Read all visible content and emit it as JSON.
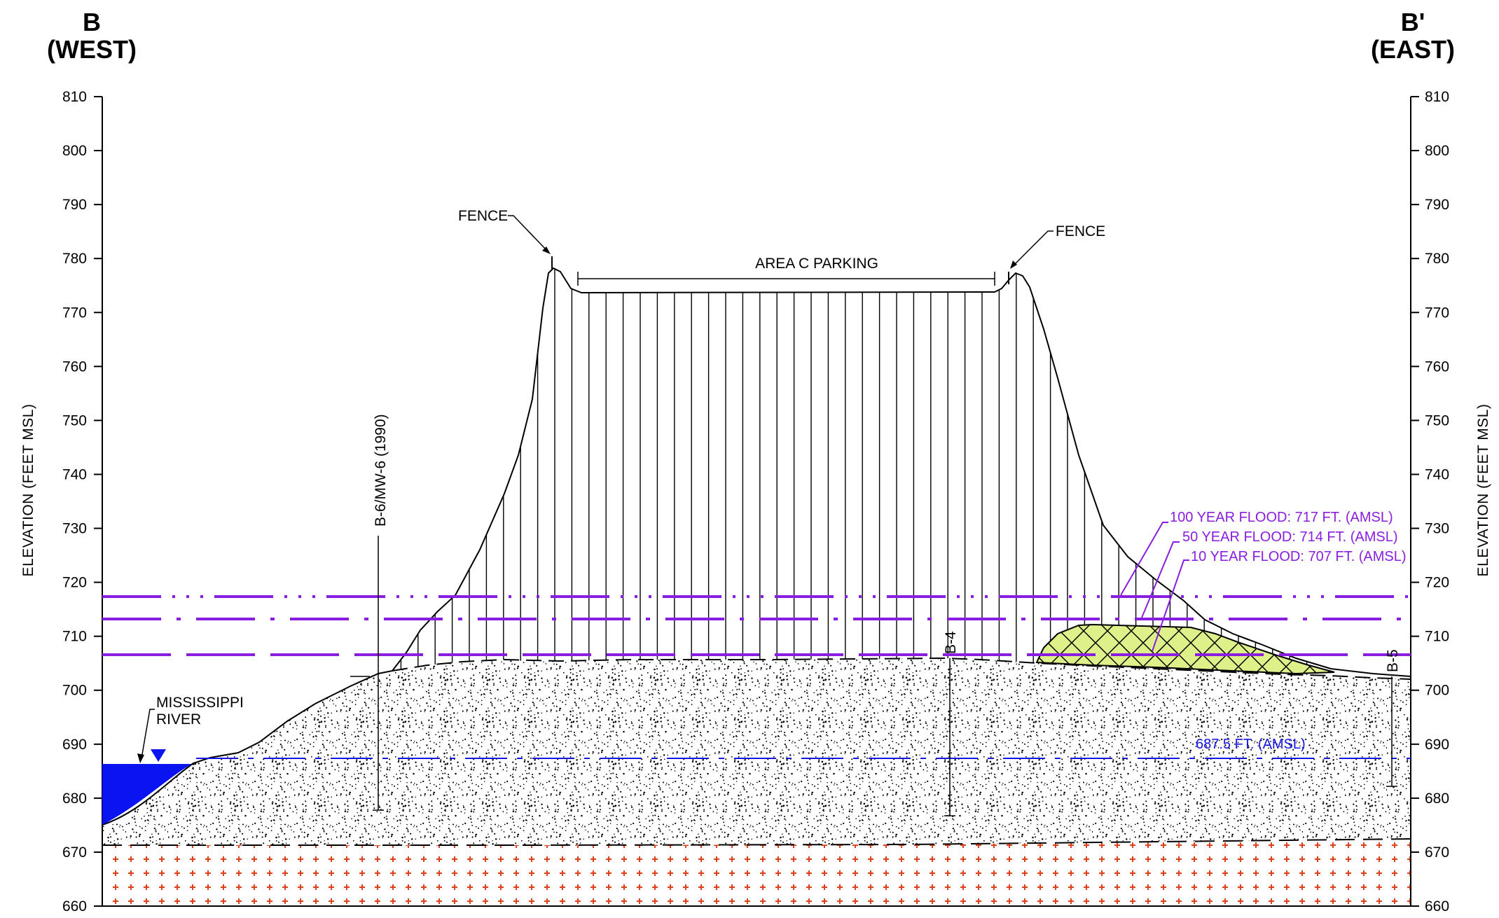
{
  "ends": {
    "west": {
      "letter": "B",
      "direction": "(WEST)"
    },
    "east": {
      "letter": "B'",
      "direction": "(EAST)"
    }
  },
  "axes": {
    "left_label": "ELEVATION (FEET MSL)",
    "right_label": "ELEVATION (FEET MSL)",
    "ticks": [
      "810",
      "800",
      "790",
      "780",
      "770",
      "760",
      "750",
      "740",
      "730",
      "720",
      "710",
      "700",
      "690",
      "680",
      "670",
      "660"
    ]
  },
  "labels": {
    "fence_west": "FENCE",
    "fence_east": "FENCE",
    "area_c": "AREA C PARKING",
    "river_line1": "MISSISSIPPI",
    "river_line2": "RIVER"
  },
  "borings": [
    {
      "name": "B-6/MW-6 (1990)",
      "top_ft": 706,
      "bottom_ft": 678
    },
    {
      "name": "B-4",
      "top_ft": 706,
      "bottom_ft": 677
    },
    {
      "name": "B-5",
      "top_ft": 702.5,
      "bottom_ft": 682
    }
  ],
  "flood_levels": [
    {
      "label": "100 YEAR FLOOD: 717 FT. (AMSL)",
      "elevation_ft": 717
    },
    {
      "label": "50 YEAR FLOOD: 714 FT. (AMSL)",
      "elevation_ft": 714
    },
    {
      "label": "10 YEAR FLOOD: 707 FT. (AMSL)",
      "elevation_ft": 707
    }
  ],
  "water_table": {
    "label": "687.5 FT. (AMSL)",
    "elevation_ft": 687.5
  },
  "colors": {
    "flood": "#8a1ee0",
    "water": "#1515e6",
    "river_fill": "#0a14f0",
    "fill_mound": "#ddf08a",
    "bedrock_cross": "#e04018"
  }
}
